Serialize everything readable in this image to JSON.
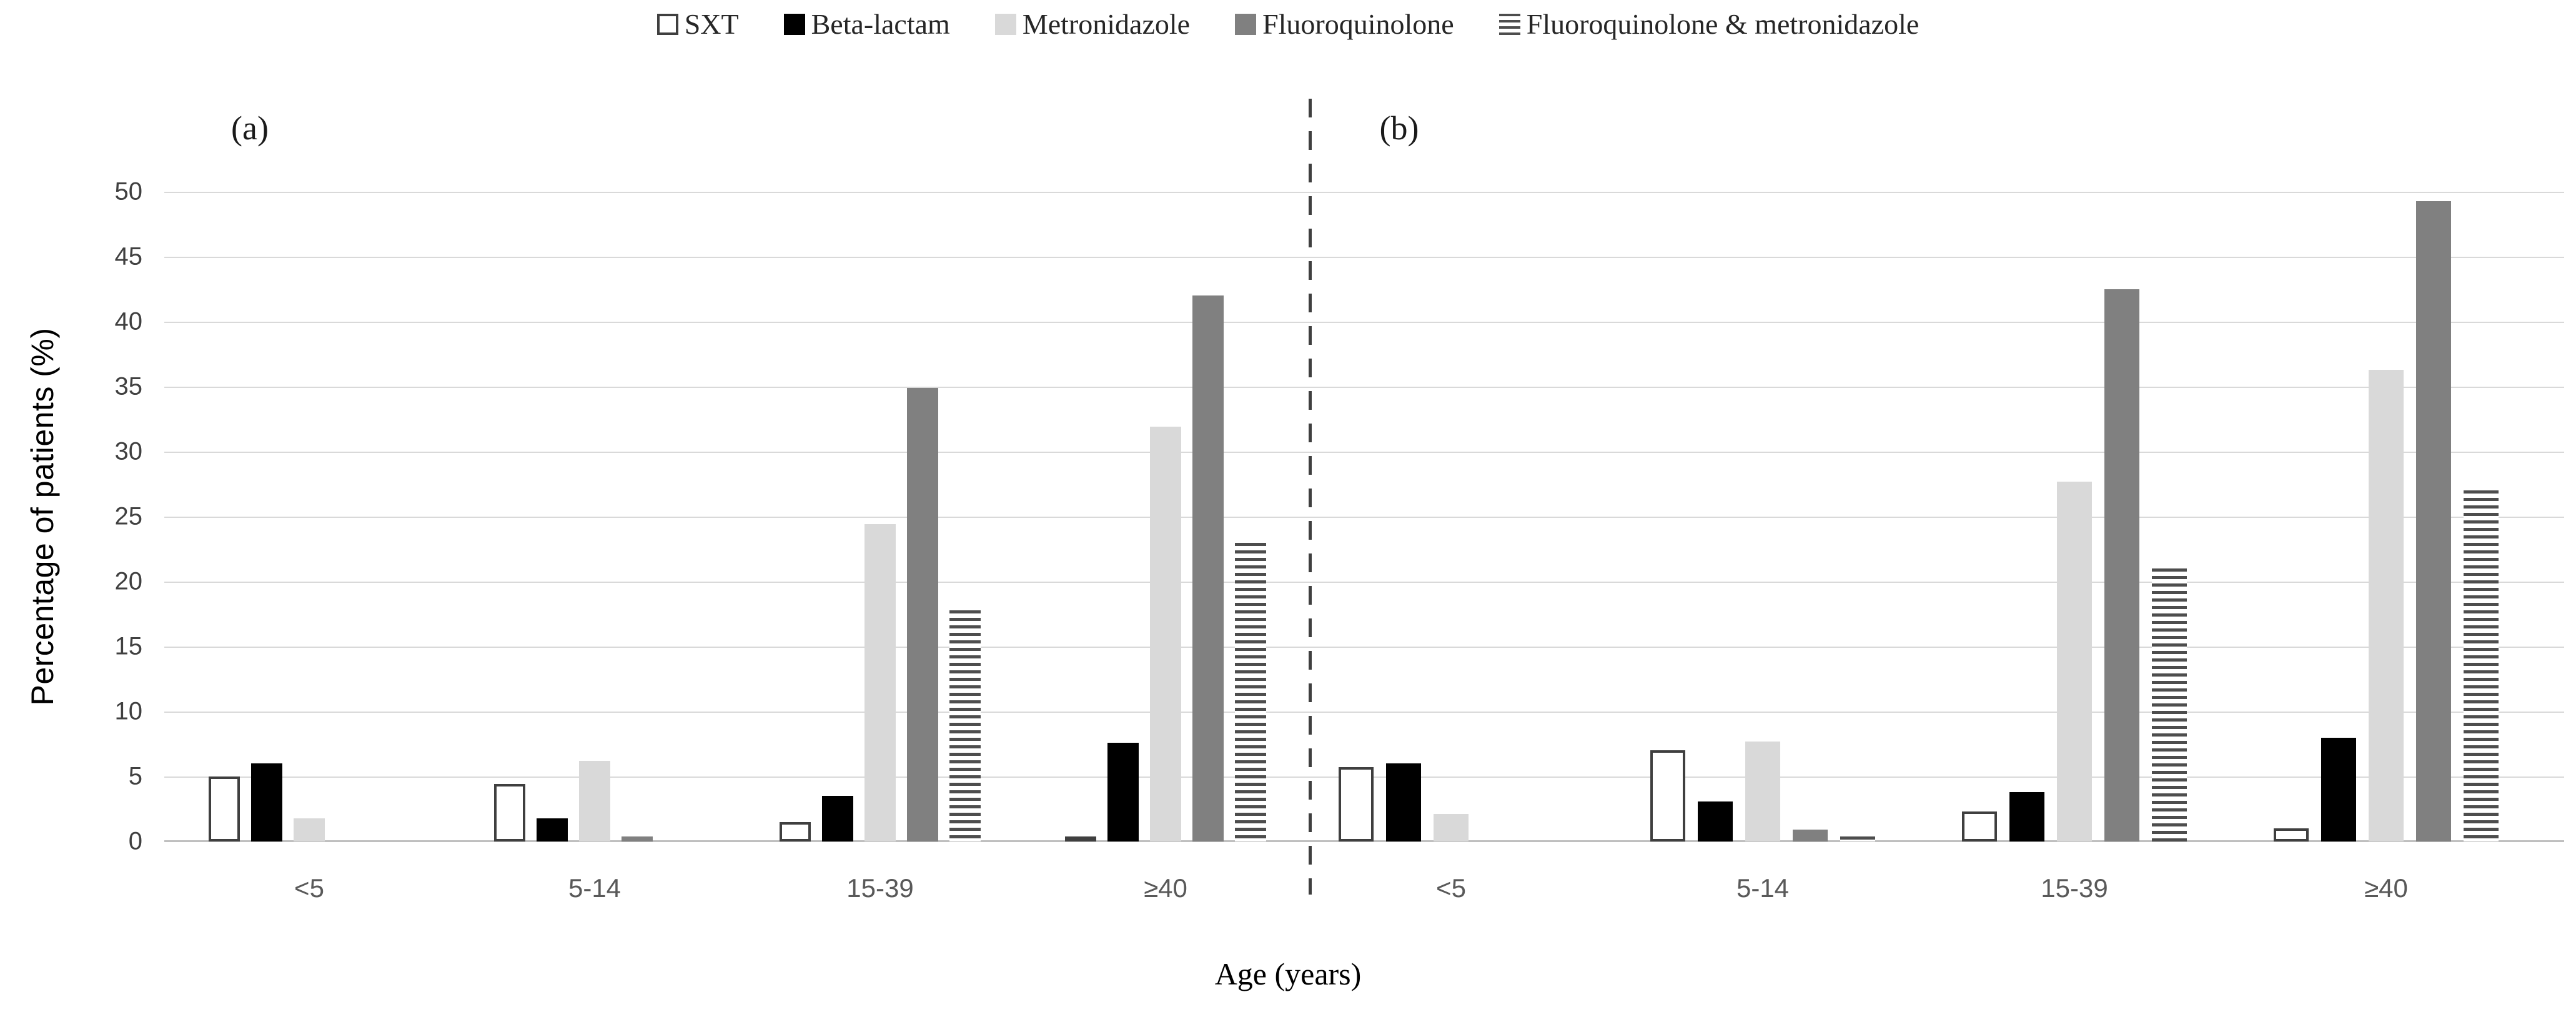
{
  "figure": {
    "ylabel": "Percentage of patients (%)",
    "xlabel": "Age (years)",
    "panel_a_label": "(a)",
    "panel_b_label": "(b)"
  },
  "legend": {
    "items": [
      {
        "label": "SXT",
        "swatch": "sxt"
      },
      {
        "label": "Beta-lactam",
        "swatch": "beta-lactam"
      },
      {
        "label": "Metronidazole",
        "swatch": "metronidazole"
      },
      {
        "label": "Fluoroquinolone",
        "swatch": "fluoroquinolone"
      },
      {
        "label": "Fluoroquinolone & metronidazole",
        "swatch": "fluoro-metro-stripes"
      }
    ]
  },
  "colors": {
    "sxt_fill": "#ffffff",
    "sxt_border": "#3f3f3f",
    "beta_lactam": "#000000",
    "metronidazole": "#d9d9d9",
    "fluoroquinolone": "#808080",
    "stripe_dark": "#4d4d4d",
    "gridline": "#d9d9d9",
    "axis_line": "#bfbfbf",
    "tick_text": "#404040",
    "category_text": "#595959"
  },
  "chart_data": {
    "type": "bar",
    "title": "",
    "ylabel": "Percentage of patients (%)",
    "xlabel": "Age (years)",
    "ylim": [
      0,
      50
    ],
    "yticks": [
      0,
      5,
      10,
      15,
      20,
      25,
      30,
      35,
      40,
      45,
      50
    ],
    "grid": "horizontal",
    "legend_position": "top-center",
    "series_names": [
      "SXT",
      "Beta-lactam",
      "Metronidazole",
      "Fluoroquinolone",
      "Fluoroquinolone & metronidazole"
    ],
    "panels": [
      {
        "label": "(a)",
        "categories": [
          "<5",
          "5-14",
          "15-39",
          "≥40"
        ],
        "series": [
          {
            "name": "SXT",
            "values": [
              5.0,
              4.4,
              1.5,
              0.4
            ]
          },
          {
            "name": "Beta-lactam",
            "values": [
              6.0,
              1.8,
              3.5,
              7.6
            ]
          },
          {
            "name": "Metronidazole",
            "values": [
              1.8,
              6.2,
              24.4,
              31.9
            ]
          },
          {
            "name": "Fluoroquinolone",
            "values": [
              0,
              0.4,
              34.9,
              42.0
            ]
          },
          {
            "name": "Fluoroquinolone & metronidazole",
            "values": [
              0,
              0,
              17.8,
              23.0
            ]
          }
        ]
      },
      {
        "label": "(b)",
        "categories": [
          "<5",
          "5-14",
          "15-39",
          "≥40"
        ],
        "series": [
          {
            "name": "SXT",
            "values": [
              5.7,
              7.0,
              2.3,
              1.0
            ]
          },
          {
            "name": "Beta-lactam",
            "values": [
              6.0,
              3.1,
              3.8,
              8.0
            ]
          },
          {
            "name": "Metronidazole",
            "values": [
              2.1,
              7.7,
              27.7,
              36.3
            ]
          },
          {
            "name": "Fluoroquinolone",
            "values": [
              0,
              0.9,
              42.5,
              49.3
            ]
          },
          {
            "name": "Fluoroquinolone & metronidazole",
            "values": [
              0,
              0.4,
              21.0,
              27.0
            ]
          }
        ]
      }
    ]
  }
}
